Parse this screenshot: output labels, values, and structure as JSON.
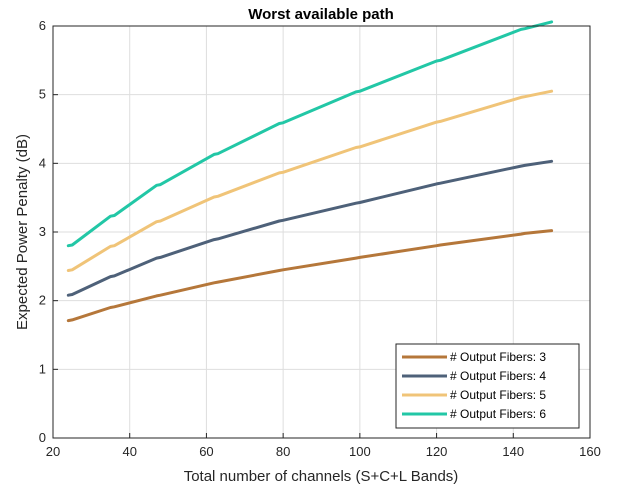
{
  "chart_data": {
    "type": "line",
    "title": "Worst available path",
    "xlabel": "Total number of channels (S+C+L Bands)",
    "ylabel": "Expected Power Penalty (dB)",
    "xlim": [
      20,
      160
    ],
    "ylim": [
      0,
      6
    ],
    "xticks": [
      20,
      40,
      60,
      80,
      100,
      120,
      140,
      160
    ],
    "yticks": [
      0,
      1,
      2,
      3,
      4,
      5,
      6
    ],
    "grid": true,
    "legend_position": "bottom-right",
    "x": [
      24,
      25,
      35,
      36,
      47,
      48,
      62,
      63,
      79,
      80,
      99,
      100,
      120,
      121,
      142,
      143,
      150
    ],
    "series": [
      {
        "name": "# Output Fibers: 3",
        "color": "#b5773a",
        "values": [
          1.71,
          1.72,
          1.9,
          1.91,
          2.07,
          2.08,
          2.26,
          2.27,
          2.44,
          2.45,
          2.62,
          2.63,
          2.8,
          2.81,
          2.97,
          2.98,
          3.02
        ]
      },
      {
        "name": "# Output Fibers: 4",
        "color": "#4e6179",
        "values": [
          2.08,
          2.09,
          2.35,
          2.36,
          2.62,
          2.63,
          2.89,
          2.9,
          3.16,
          3.17,
          3.42,
          3.43,
          3.7,
          3.71,
          3.96,
          3.97,
          4.03
        ]
      },
      {
        "name": "# Output Fibers: 5",
        "color": "#f0c478",
        "values": [
          2.44,
          2.45,
          2.79,
          2.8,
          3.15,
          3.16,
          3.51,
          3.52,
          3.86,
          3.87,
          4.23,
          4.24,
          4.6,
          4.61,
          4.96,
          4.97,
          5.05
        ]
      },
      {
        "name": "# Output Fibers: 6",
        "color": "#22c7a6",
        "values": [
          2.8,
          2.81,
          3.23,
          3.24,
          3.68,
          3.69,
          4.13,
          4.14,
          4.58,
          4.59,
          5.04,
          5.05,
          5.49,
          5.5,
          5.95,
          5.96,
          6.06
        ]
      }
    ]
  }
}
